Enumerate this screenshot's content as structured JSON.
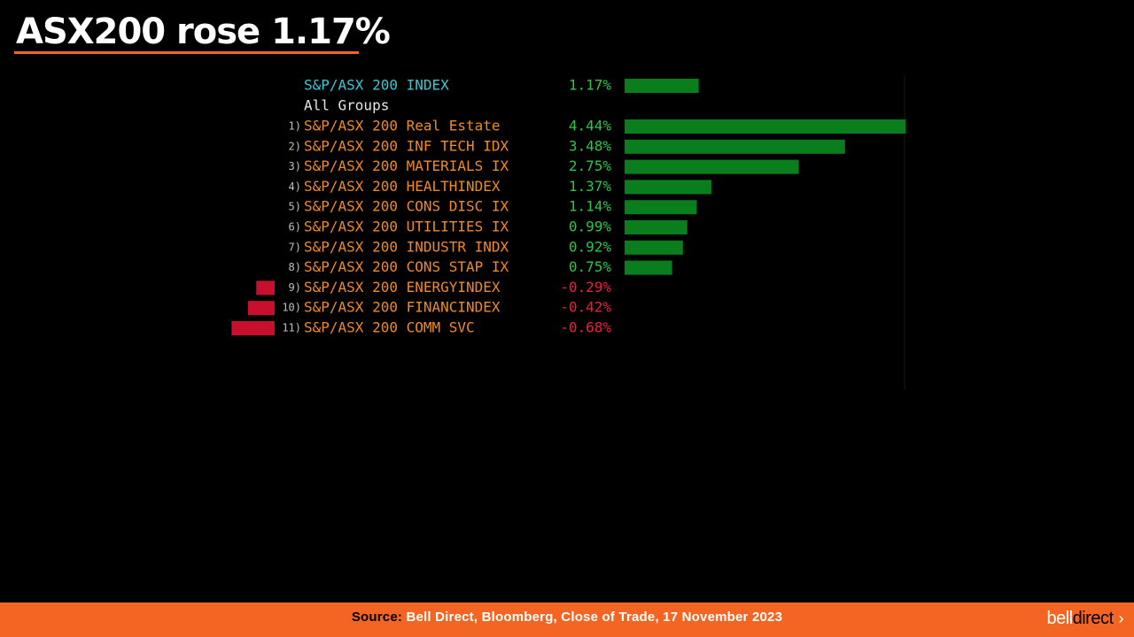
{
  "title": "ASX200 rose 1.17%",
  "colors": {
    "accent": "#f26522",
    "positive_bar": "#0a7d1c",
    "negative_bar": "#c8102e",
    "positive_text": "#29c845",
    "negative_text": "#e8203b",
    "index_text": "#36c9d6",
    "sector_text": "#f08a24",
    "header_text": "#e6e6e6"
  },
  "chart_data": {
    "type": "bar",
    "orientation": "horizontal",
    "index": {
      "label": "S&P/ASX 200 INDEX",
      "value": 1.17,
      "display": "1.17%"
    },
    "group_label": "All Groups",
    "categories": [
      "S&P/ASX 200 Real Estate",
      "S&P/ASX 200 INF TECH IDX",
      "S&P/ASX 200 MATERIALS IX",
      "S&P/ASX 200 HEALTHINDEX",
      "S&P/ASX 200 CONS DISC IX",
      "S&P/ASX 200 UTILITIES IX",
      "S&P/ASX 200 INDUSTR INDX",
      "S&P/ASX 200 CONS STAP IX",
      "S&P/ASX 200 ENERGYINDEX",
      "S&P/ASX 200 FINANCINDEX",
      "S&P/ASX 200 COMM SVC"
    ],
    "ranks": [
      "1)",
      "2)",
      "3)",
      "4)",
      "5)",
      "6)",
      "7)",
      "8)",
      "9)",
      "10)",
      "11)"
    ],
    "values": [
      4.44,
      3.48,
      2.75,
      1.37,
      1.14,
      0.99,
      0.92,
      0.75,
      -0.29,
      -0.42,
      -0.68
    ],
    "labels": [
      "4.44%",
      "3.48%",
      "2.75%",
      "1.37%",
      "1.14%",
      "0.99%",
      "0.92%",
      "0.75%",
      "-0.29%",
      "-0.42%",
      "-0.68%"
    ]
  },
  "footer": {
    "source_label": "Source:",
    "source_text": " Bell Direct, Bloomberg, Close of Trade, 17 November 2023",
    "brand_a": "bell",
    "brand_b": "direct",
    "brand_chevron": "›"
  }
}
